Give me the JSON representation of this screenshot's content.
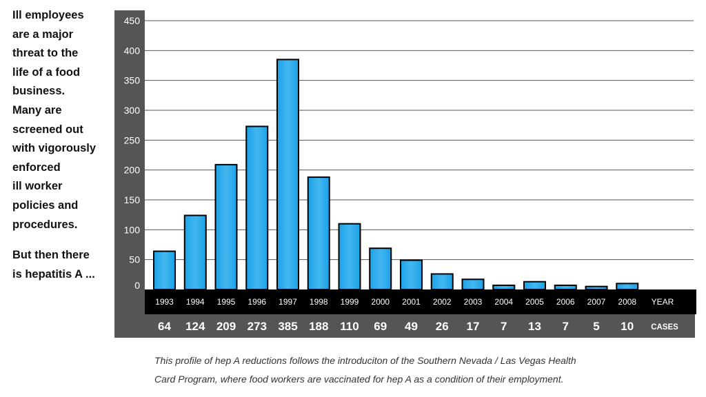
{
  "side_text": {
    "paragraph1_lines": [
      "Ill employees",
      "are a major",
      "threat to the",
      "life of a food",
      "business.",
      "Many are",
      "screened out",
      "with vigorously",
      "enforced",
      "ill worker",
      "policies and",
      "procedures."
    ],
    "paragraph2_lines": [
      "But then there",
      "is hepatitis A ..."
    ]
  },
  "caption_lines": [
    "This profile of hep A reductions follows the introduciton of the Southern Nevada / Las Vegas Health",
    "Card Program, where food workers are vaccinated for hep A as a condition of their employment."
  ],
  "chart_data": {
    "type": "bar",
    "categories": [
      "1993",
      "1994",
      "1995",
      "1996",
      "1997",
      "1998",
      "1999",
      "2000",
      "2001",
      "2002",
      "2003",
      "2004",
      "2005",
      "2006",
      "2007",
      "2008"
    ],
    "values": [
      64,
      124,
      209,
      273,
      385,
      188,
      110,
      69,
      49,
      26,
      17,
      7,
      13,
      7,
      5,
      10
    ],
    "value_labels": [
      "64",
      "124",
      "209",
      "273",
      "385",
      "188",
      "110",
      "69",
      "49",
      "26",
      "17",
      "7",
      "13",
      "7",
      "5",
      "10"
    ],
    "yticks": [
      "0",
      "50",
      "100",
      "150",
      "200",
      "250",
      "300",
      "350",
      "400",
      "450"
    ],
    "ylim": [
      0,
      450
    ],
    "year_row_label": "YEAR",
    "cases_row_label": "CASES",
    "grid": true,
    "colors": {
      "panel": "#555555",
      "bar_fill": "#1da1e6",
      "bar_highlight": "#42b7f0",
      "bar_stroke": "#000000",
      "gridline": "#555555",
      "year_band": "#000000"
    }
  }
}
